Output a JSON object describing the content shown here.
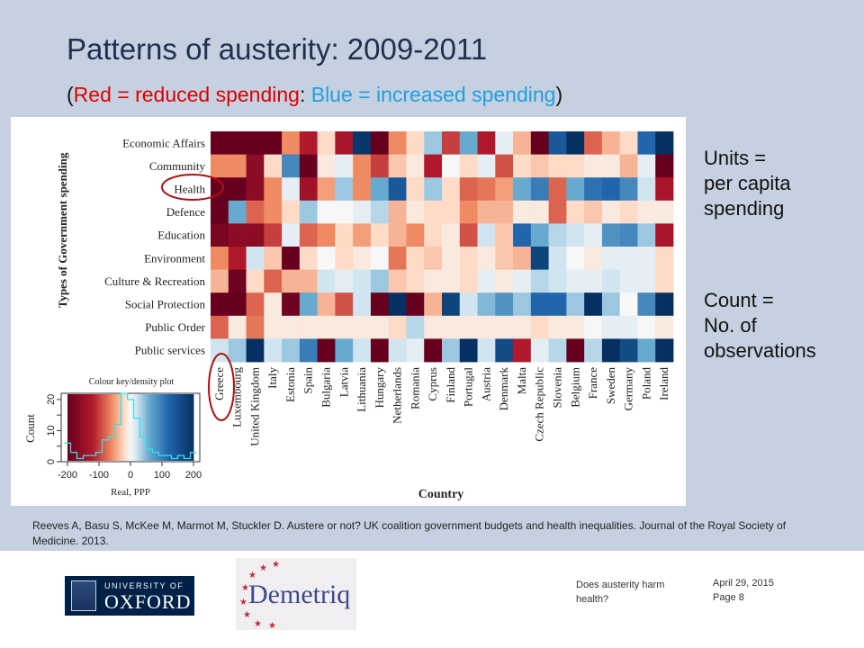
{
  "slide": {
    "title": "Patterns of austerity: 2009-2011",
    "subtitle": {
      "open": "(",
      "red_part": "Red = reduced spending",
      "sep": ": ",
      "blue_part": "Blue = increased spending",
      "close": ")",
      "red_color": "#e00000",
      "blue_color": "#1fa0e0",
      "black_color": "#111111"
    },
    "note_units": [
      "Units =",
      "per capita",
      "spending"
    ],
    "note_count": [
      "Count =",
      "No. of",
      "observations"
    ],
    "citation": "Reeves A, Basu S, McKee M, Marmot M, Stuckler D. Austere or not? UK coalition government budgets and health inequalities. Journal of the Royal Society of Medicine. 2013.",
    "footer": {
      "topic": "Does austerity harm health?",
      "date": "April 29, 2015",
      "page": "Page 8"
    },
    "logos": {
      "oxford_line1": "UNIVERSITY OF",
      "oxford_line2": "OXFORD",
      "demetriq": "Demetriq"
    }
  },
  "chart_data": {
    "type": "heatmap",
    "ylabel": "Types of Government spending",
    "xlabel": "Country",
    "rows": [
      "Economic Affairs",
      "Community",
      "Health",
      "Defence",
      "Education",
      "Environment",
      "Culture & Recreation",
      "Social Protection",
      "Public Order",
      "Public services"
    ],
    "columns": [
      "Greece",
      "Luxembourg",
      "United Kingdom",
      "Italy",
      "Estonia",
      "Spain",
      "Bulgaria",
      "Latvia",
      "Lithuania",
      "Hungary",
      "Netherlands",
      "Romania",
      "Cyprus",
      "Finland",
      "Portugal",
      "Austria",
      "Denmark",
      "Malta",
      "Czech Republic",
      "Slovenia",
      "Belgium",
      "France",
      "Sweden",
      "Germany",
      "Poland",
      "Ireland"
    ],
    "values": [
      [
        -220,
        -220,
        -220,
        -220,
        -60,
        -120,
        -20,
        -130,
        190,
        -220,
        -60,
        -20,
        40,
        -100,
        60,
        -120,
        10,
        -40,
        -230,
        140,
        230,
        -80,
        -40,
        -20,
        120,
        230
      ],
      [
        -60,
        -60,
        -160,
        -20,
        90,
        -200,
        -10,
        10,
        -60,
        -100,
        -30,
        -10,
        -120,
        0,
        -20,
        10,
        -90,
        -20,
        -30,
        -20,
        -20,
        -10,
        -10,
        -40,
        10,
        -230
      ],
      [
        -230,
        -200,
        -160,
        -60,
        10,
        -140,
        -50,
        40,
        -60,
        60,
        140,
        -20,
        40,
        -20,
        -80,
        -70,
        -50,
        60,
        100,
        -80,
        60,
        110,
        120,
        90,
        20,
        -130
      ],
      [
        -230,
        60,
        -80,
        -60,
        -20,
        40,
        0,
        0,
        10,
        30,
        -40,
        -10,
        -20,
        -20,
        -60,
        -40,
        -40,
        -10,
        -10,
        -80,
        -20,
        -30,
        -10,
        -20,
        -10,
        -10
      ],
      [
        -180,
        -160,
        -160,
        -100,
        10,
        -80,
        -60,
        -20,
        -50,
        -20,
        -40,
        -60,
        -20,
        -10,
        -90,
        20,
        -30,
        120,
        60,
        30,
        20,
        10,
        80,
        90,
        40,
        -130
      ],
      [
        -60,
        -120,
        20,
        -30,
        -230,
        -20,
        0,
        -20,
        -10,
        0,
        -70,
        -20,
        -30,
        -10,
        -20,
        -10,
        -30,
        -40,
        170,
        20,
        0,
        -10,
        10,
        10,
        10,
        -20
      ],
      [
        -40,
        -190,
        -20,
        -80,
        -40,
        -40,
        20,
        10,
        20,
        40,
        -30,
        -20,
        -10,
        -10,
        -20,
        10,
        -10,
        10,
        30,
        20,
        10,
        10,
        20,
        10,
        10,
        -20
      ],
      [
        -230,
        -220,
        -80,
        -10,
        -190,
        60,
        -40,
        -90,
        20,
        -200,
        230,
        -230,
        -40,
        170,
        20,
        50,
        80,
        40,
        120,
        120,
        40,
        200,
        40,
        0,
        90,
        230
      ],
      [
        -80,
        -10,
        -70,
        -10,
        -10,
        -10,
        -10,
        -10,
        -10,
        -10,
        -20,
        30,
        -10,
        -10,
        -10,
        -10,
        -10,
        -10,
        -20,
        -10,
        -10,
        0,
        10,
        10,
        0,
        -10
      ],
      [
        20,
        40,
        230,
        20,
        40,
        100,
        -230,
        60,
        20,
        -230,
        20,
        10,
        -200,
        40,
        230,
        20,
        160,
        -120,
        10,
        30,
        -230,
        30,
        230,
        160,
        60,
        230
      ]
    ],
    "color_scale": {
      "min": -200,
      "max": 200,
      "low_color": "#67001f",
      "mid_color": "#f7f7f7",
      "high_color": "#053061",
      "meaning": "Red = reduced spending, Blue = increased spending"
    },
    "key": {
      "title": "Colour key/density plot",
      "xlabel": "Real, PPP",
      "ylabel": "Count",
      "x_ticks": [
        -200,
        -100,
        0,
        100,
        200
      ],
      "y_ticks": [
        0,
        5,
        10,
        15,
        20
      ],
      "xlim": [
        -220,
        220
      ],
      "ylim": [
        0,
        22
      ],
      "density_bins": [
        -200,
        -180,
        -160,
        -140,
        -120,
        -100,
        -80,
        -60,
        -40,
        -20,
        0,
        20,
        40,
        60,
        80,
        100,
        120,
        140,
        160,
        180,
        200
      ],
      "density_counts": [
        6,
        3,
        1,
        2,
        2,
        3,
        7,
        8,
        12,
        22,
        20,
        14,
        8,
        4,
        3,
        2,
        2,
        1,
        2,
        1,
        3
      ]
    },
    "highlights": [
      "Health",
      "Greece"
    ],
    "highlight_color": "#b01010"
  }
}
